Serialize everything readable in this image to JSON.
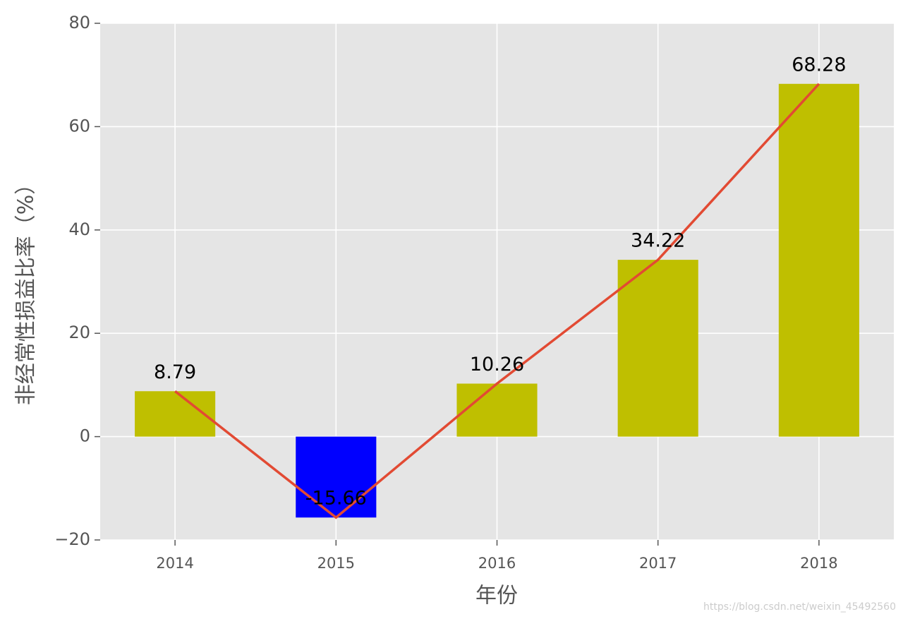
{
  "chart_data": {
    "type": "bar_line",
    "categories": [
      "2014",
      "2015",
      "2016",
      "2017",
      "2018"
    ],
    "values": [
      8.79,
      -15.66,
      10.26,
      34.22,
      68.28
    ],
    "colors": [
      "#bfbf00",
      "#0000ff",
      "#bfbf00",
      "#bfbf00",
      "#bfbf00"
    ],
    "line_color": "#e24a33",
    "xlabel": "年份",
    "ylabel": "非经常性损益比率（%）",
    "ylim": [
      -20,
      80
    ],
    "yticks": [
      {
        "value": -20,
        "label": "−20"
      },
      0,
      20,
      40,
      60,
      80
    ],
    "grid": true,
    "watermark": "https://blog.csdn.net/weixin_45492560"
  }
}
